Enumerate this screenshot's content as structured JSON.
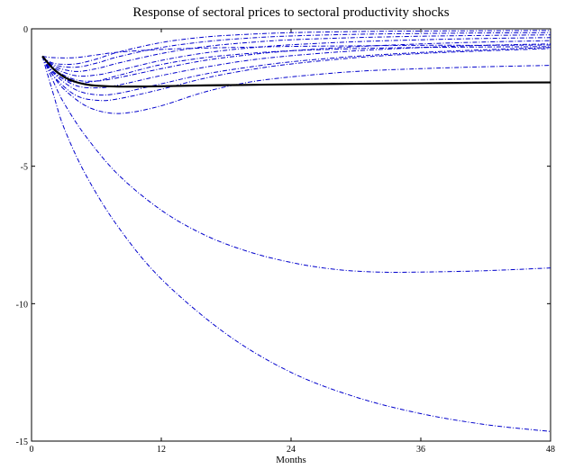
{
  "chart_data": {
    "type": "line",
    "title": "Response of sectoral prices to sectoral productivity shocks",
    "xlabel": "Months",
    "ylabel": "",
    "xlim": [
      0,
      48
    ],
    "ylim": [
      -15,
      0
    ],
    "xticks": [
      0,
      12,
      24,
      36,
      48
    ],
    "yticks": [
      0,
      -5,
      -10,
      -15
    ],
    "xtick_labels": [
      "0",
      "12",
      "24",
      "36",
      "48"
    ],
    "ytick_labels": [
      "0",
      "-5",
      "-10",
      "-15"
    ],
    "grid": false,
    "legend": "none",
    "colors": {
      "sector": "#0000cc",
      "aggregate": "#000000"
    },
    "aggregate": {
      "style": "solid",
      "x": [
        1,
        2,
        3,
        4,
        5,
        6,
        8,
        10,
        12,
        16,
        20,
        24,
        30,
        36,
        42,
        48
      ],
      "values": [
        -1.0,
        -1.45,
        -1.75,
        -1.92,
        -2.02,
        -2.07,
        -2.1,
        -2.1,
        -2.09,
        -2.06,
        -2.04,
        -2.02,
        -2.0,
        -1.98,
        -1.96,
        -1.95
      ]
    },
    "series": [
      {
        "style": "dashdot",
        "x": [
          1,
          2,
          3,
          5,
          8,
          12,
          18,
          24,
          30,
          36,
          42,
          48
        ],
        "values": [
          -1.0,
          -2.35,
          -3.6,
          -5.3,
          -7.2,
          -9.1,
          -11.1,
          -12.5,
          -13.4,
          -14.0,
          -14.4,
          -14.65
        ]
      },
      {
        "style": "dashdot",
        "x": [
          1,
          2,
          3,
          5,
          8,
          12,
          16,
          20,
          24,
          28,
          32,
          36,
          42,
          48
        ],
        "values": [
          -1.0,
          -1.9,
          -2.7,
          -3.9,
          -5.3,
          -6.6,
          -7.5,
          -8.1,
          -8.5,
          -8.75,
          -8.85,
          -8.85,
          -8.8,
          -8.7
        ]
      },
      {
        "style": "dashdot",
        "x": [
          1,
          2,
          3,
          5,
          7,
          9,
          12,
          16,
          20,
          24,
          30,
          36,
          42,
          48
        ],
        "values": [
          -1.0,
          -1.7,
          -2.2,
          -2.8,
          -3.05,
          -3.05,
          -2.8,
          -2.3,
          -1.95,
          -1.75,
          -1.55,
          -1.45,
          -1.38,
          -1.33
        ]
      },
      {
        "style": "dashdot",
        "x": [
          1,
          2,
          4,
          6,
          8,
          12,
          16,
          20,
          24,
          30,
          36,
          42,
          48
        ],
        "values": [
          -1.0,
          -1.7,
          -2.4,
          -2.6,
          -2.55,
          -2.2,
          -1.8,
          -1.5,
          -1.28,
          -1.05,
          -0.9,
          -0.8,
          -0.72
        ]
      },
      {
        "style": "dashdot",
        "x": [
          1,
          2,
          4,
          6,
          8,
          12,
          16,
          20,
          24,
          30,
          36,
          42,
          48
        ],
        "values": [
          -1.0,
          -1.6,
          -2.2,
          -2.4,
          -2.35,
          -2.0,
          -1.65,
          -1.4,
          -1.2,
          -1.0,
          -0.86,
          -0.76,
          -0.68
        ]
      },
      {
        "style": "dashdot",
        "x": [
          1,
          2,
          4,
          6,
          8,
          12,
          16,
          20,
          24,
          30,
          36,
          42,
          48
        ],
        "values": [
          -1.0,
          -1.55,
          -2.05,
          -2.15,
          -2.05,
          -1.7,
          -1.4,
          -1.15,
          -0.98,
          -0.8,
          -0.68,
          -0.6,
          -0.55
        ]
      },
      {
        "style": "dashdot",
        "x": [
          1,
          2,
          4,
          6,
          8,
          12,
          16,
          20,
          24,
          30,
          36,
          42,
          48
        ],
        "values": [
          -1.0,
          -1.45,
          -1.85,
          -1.9,
          -1.78,
          -1.45,
          -1.15,
          -0.95,
          -0.8,
          -0.65,
          -0.55,
          -0.48,
          -0.43
        ]
      },
      {
        "style": "dashdot",
        "x": [
          1,
          2,
          4,
          6,
          8,
          12,
          16,
          20,
          24,
          30,
          36,
          42,
          48
        ],
        "values": [
          -1.0,
          -1.4,
          -1.7,
          -1.68,
          -1.52,
          -1.15,
          -0.88,
          -0.7,
          -0.58,
          -0.47,
          -0.4,
          -0.35,
          -0.32
        ]
      },
      {
        "style": "dashdot",
        "x": [
          1,
          2,
          4,
          6,
          8,
          12,
          16,
          20,
          24,
          30,
          36,
          42,
          48
        ],
        "values": [
          -1.0,
          -1.35,
          -1.55,
          -1.45,
          -1.25,
          -0.9,
          -0.65,
          -0.5,
          -0.4,
          -0.32,
          -0.27,
          -0.24,
          -0.22
        ]
      },
      {
        "style": "dashdot",
        "x": [
          1,
          2,
          4,
          6,
          8,
          12,
          16,
          20,
          24,
          30,
          36,
          42,
          48
        ],
        "values": [
          -1.0,
          -1.3,
          -1.4,
          -1.25,
          -1.02,
          -0.68,
          -0.47,
          -0.34,
          -0.26,
          -0.2,
          -0.17,
          -0.15,
          -0.14
        ]
      },
      {
        "style": "dashdot",
        "x": [
          1,
          2,
          4,
          6,
          8,
          12,
          16,
          20,
          24,
          30,
          36,
          42,
          48
        ],
        "values": [
          -1.0,
          -1.25,
          -1.28,
          -1.1,
          -0.85,
          -0.5,
          -0.3,
          -0.2,
          -0.14,
          -0.1,
          -0.08,
          -0.07,
          -0.06
        ]
      },
      {
        "style": "dashdot",
        "x": [
          1,
          2,
          4,
          6,
          8,
          12,
          16,
          20,
          24,
          30,
          36,
          42,
          48
        ],
        "values": [
          -1.0,
          -1.05,
          -1.05,
          -0.95,
          -0.85,
          -0.75,
          -0.7,
          -0.67,
          -0.64,
          -0.62,
          -0.6,
          -0.6,
          -0.59
        ]
      },
      {
        "style": "dashdot",
        "x": [
          1,
          2,
          4,
          6,
          8,
          12,
          16,
          20,
          24,
          30,
          36,
          42,
          48
        ],
        "values": [
          -1.0,
          -1.6,
          -1.95,
          -1.9,
          -1.7,
          -1.3,
          -1.05,
          -0.9,
          -0.8,
          -0.72,
          -0.68,
          -0.66,
          -0.65
        ]
      }
    ]
  }
}
